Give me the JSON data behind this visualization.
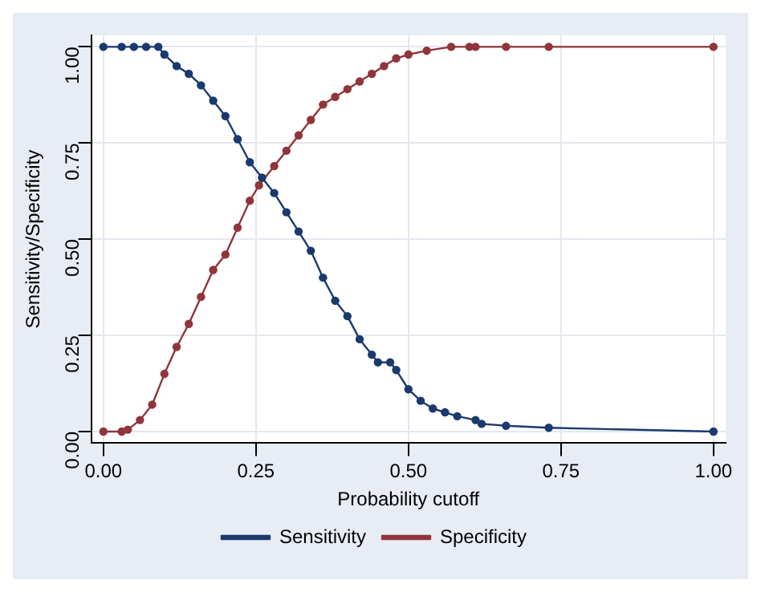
{
  "chart_data": {
    "type": "line",
    "xlabel": "Probability cutoff",
    "ylabel": "Sensitivity/Specificity",
    "xlim": [
      -0.02,
      1.02
    ],
    "ylim": [
      -0.03,
      1.03
    ],
    "xticks": [
      {
        "value": 0,
        "label": "0.00"
      },
      {
        "value": 0.25,
        "label": "0.25"
      },
      {
        "value": 0.5,
        "label": "0.50"
      },
      {
        "value": 0.75,
        "label": "0.75"
      },
      {
        "value": 1,
        "label": "1.00"
      }
    ],
    "yticks": [
      {
        "value": 0,
        "label": "0.00"
      },
      {
        "value": 0.25,
        "label": "0.25"
      },
      {
        "value": 0.5,
        "label": "0.50"
      },
      {
        "value": 0.75,
        "label": "0.75"
      },
      {
        "value": 1,
        "label": "1.00"
      }
    ],
    "grid": true,
    "legend": "bottom",
    "marker": "circle",
    "line_style": "solid",
    "series": [
      {
        "name": "Sensitivity",
        "color": "#1a3a6e",
        "x": [
          0,
          0.03,
          0.05,
          0.07,
          0.09,
          0.1,
          0.12,
          0.14,
          0.16,
          0.18,
          0.2,
          0.22,
          0.24,
          0.26,
          0.28,
          0.3,
          0.32,
          0.34,
          0.36,
          0.38,
          0.4,
          0.42,
          0.44,
          0.45,
          0.47,
          0.48,
          0.5,
          0.52,
          0.54,
          0.56,
          0.58,
          0.61,
          0.62,
          0.66,
          0.73,
          1
        ],
        "values": [
          1,
          1,
          1,
          1,
          1,
          0.98,
          0.95,
          0.93,
          0.9,
          0.86,
          0.82,
          0.76,
          0.7,
          0.66,
          0.62,
          0.57,
          0.52,
          0.47,
          0.4,
          0.34,
          0.3,
          0.24,
          0.2,
          0.18,
          0.18,
          0.16,
          0.11,
          0.08,
          0.06,
          0.05,
          0.04,
          0.03,
          0.02,
          0.015,
          0.01,
          0
        ]
      },
      {
        "name": "Specificity",
        "color": "#90353b",
        "x": [
          0,
          0.03,
          0.04,
          0.06,
          0.08,
          0.1,
          0.12,
          0.14,
          0.16,
          0.18,
          0.2,
          0.22,
          0.24,
          0.255,
          0.28,
          0.3,
          0.32,
          0.34,
          0.36,
          0.38,
          0.4,
          0.42,
          0.44,
          0.46,
          0.48,
          0.5,
          0.53,
          0.57,
          0.6,
          0.61,
          0.66,
          0.73,
          1
        ],
        "values": [
          0,
          0,
          0.005,
          0.03,
          0.07,
          0.15,
          0.22,
          0.28,
          0.35,
          0.42,
          0.46,
          0.53,
          0.6,
          0.64,
          0.69,
          0.73,
          0.77,
          0.81,
          0.85,
          0.87,
          0.89,
          0.91,
          0.93,
          0.95,
          0.97,
          0.98,
          0.99,
          1,
          1,
          1,
          1,
          1,
          1
        ]
      }
    ]
  }
}
